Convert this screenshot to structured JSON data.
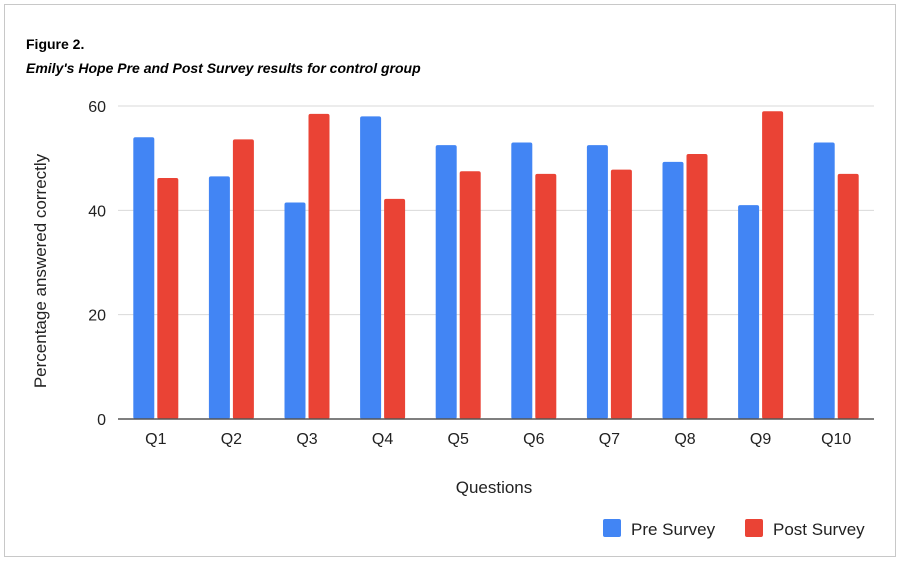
{
  "figure_label": "Figure 2.",
  "figure_caption": "Emily's Hope Pre and Post Survey results for control group",
  "colors": {
    "pre": "#4285f4",
    "post": "#ea4335",
    "grid": "#d9d9d9",
    "axis": "#555555"
  },
  "chart_data": {
    "type": "bar",
    "title": "",
    "xlabel": "Questions",
    "ylabel": "Percentage answered correctly",
    "categories": [
      "Q1",
      "Q2",
      "Q3",
      "Q4",
      "Q5",
      "Q6",
      "Q7",
      "Q8",
      "Q9",
      "Q10"
    ],
    "ylim": [
      0,
      60
    ],
    "yticks": [
      0,
      20,
      40,
      60
    ],
    "grid": true,
    "legend_position": "bottom-right",
    "series": [
      {
        "name": "Pre Survey",
        "values": [
          54,
          46.5,
          41.5,
          58,
          52.5,
          53,
          52.5,
          49.3,
          41,
          53
        ]
      },
      {
        "name": "Post Survey",
        "values": [
          46.2,
          53.6,
          58.5,
          42.2,
          47.5,
          47,
          47.8,
          50.8,
          59,
          47
        ]
      }
    ]
  }
}
